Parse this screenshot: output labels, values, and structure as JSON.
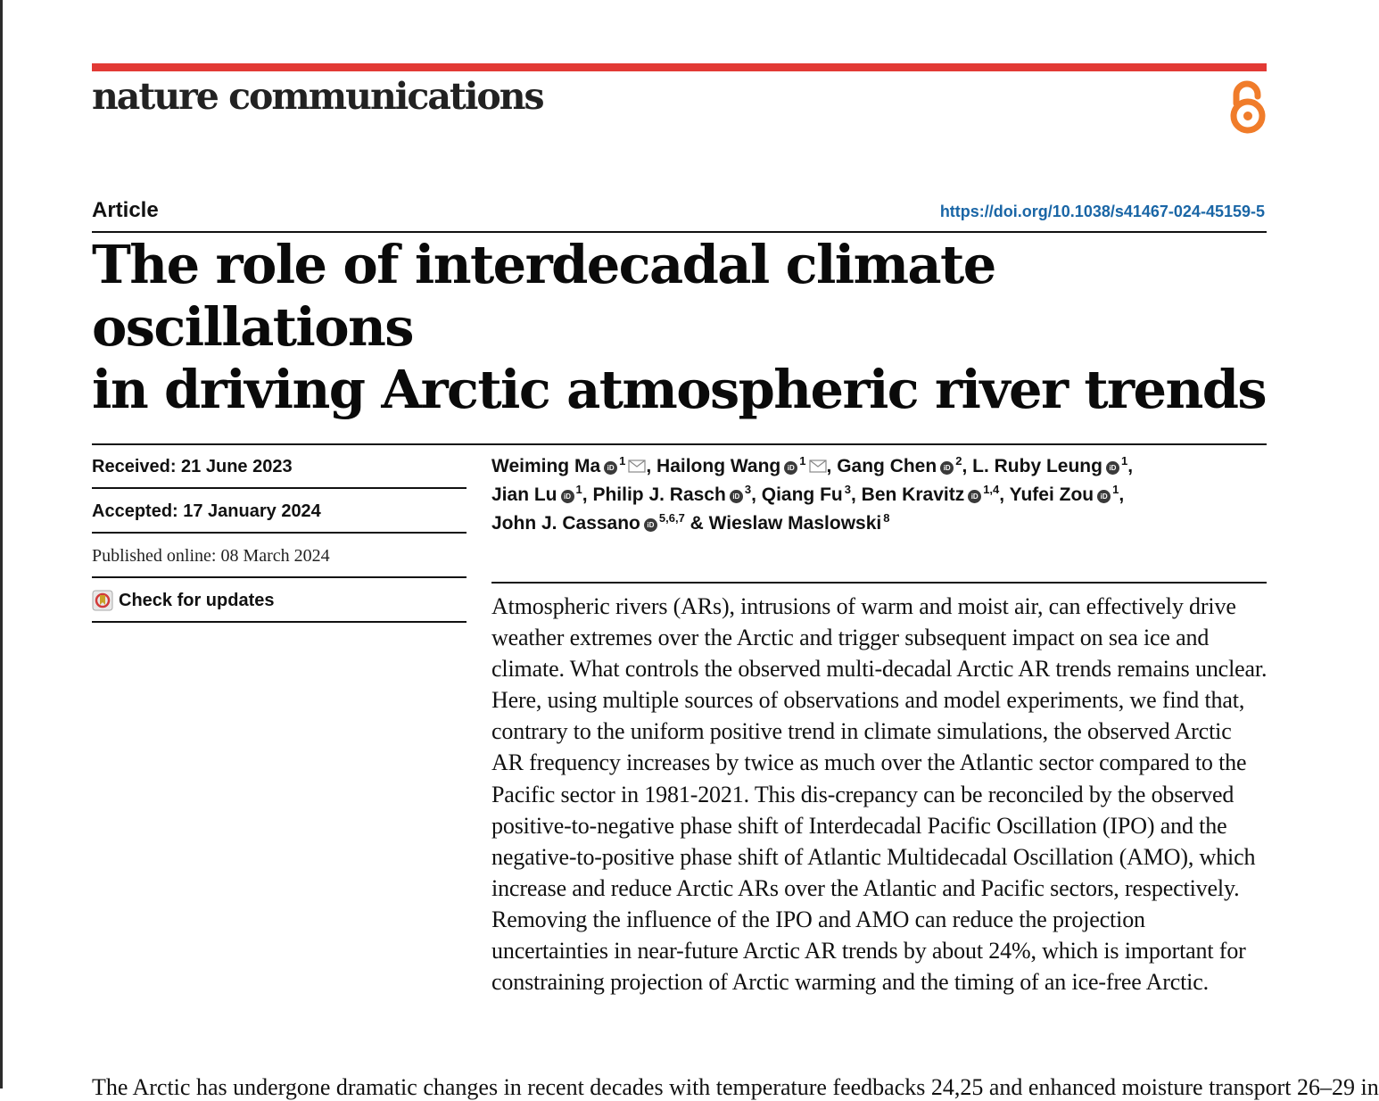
{
  "header": {
    "journal_name": "nature communications",
    "accent_color": "#e23a35",
    "open_access_icon": "open-access-icon",
    "open_access_color": "#f07c2a"
  },
  "article": {
    "type": "Article",
    "doi": "https://doi.org/10.1038/s41467-024-45159-5",
    "title_line1": "The role of interdecadal climate oscillations",
    "title_line2": "in driving Arctic atmospheric river trends"
  },
  "dates": {
    "received": "Received: 21 June 2023",
    "accepted": "Accepted: 17 January 2024",
    "published": "Published online: 08 March 2024",
    "check_updates": "Check for updates"
  },
  "authors": [
    {
      "name": "Weiming Ma",
      "sup": "1"
    },
    {
      "name": "Hailong Wang",
      "sup": "1"
    },
    {
      "name": "Gang Chen",
      "sup": "2"
    },
    {
      "name": "L. Ruby Leung",
      "sup": "1"
    },
    {
      "name": "Jian Lu",
      "sup": "1"
    },
    {
      "name": "Philip J. Rasch",
      "sup": "3"
    },
    {
      "name": "Qiang Fu",
      "sup": "3"
    },
    {
      "name": "Ben Kravitz",
      "sup": "1,4"
    },
    {
      "name": "Yufei Zou",
      "sup": "1"
    },
    {
      "name": "John J. Cassano",
      "sup": "5,6,7"
    },
    {
      "name": "Wieslaw Maslowski",
      "sup": "8"
    }
  ],
  "author_separators": {
    "comma": ",",
    "ampersand": "&"
  },
  "abstract": "Atmospheric rivers (ARs), intrusions of warm and moist air, can effectively drive weather extremes over the Arctic and trigger subsequent impact on sea ice and climate. What controls the observed multi-decadal Arctic AR trends remains unclear. Here, using multiple sources of observations and model experiments, we find that, contrary to the uniform positive trend in climate simulations, the observed Arctic AR frequency increases by twice as much over the Atlantic sector compared to the Pacific sector in 1981-2021. This dis-crepancy can be reconciled by the observed positive-to-negative phase shift of Interdecadal Pacific Oscillation (IPO) and the negative-to-positive phase shift of Atlantic Multidecadal Oscillation (AMO), which increase and reduce Arctic ARs over the Atlantic and Pacific sectors, respectively. Removing the influence of the IPO and AMO can reduce the projection uncertainties in near-future Arctic AR trends by about 24%, which is important for constraining projection of Arctic warming and the timing of an ice-free Arctic.",
  "body_start": "The Arctic has undergone dramatic changes in recent decades with temperature feedbacks 24,25 and enhanced moisture transport 26–29 in"
}
